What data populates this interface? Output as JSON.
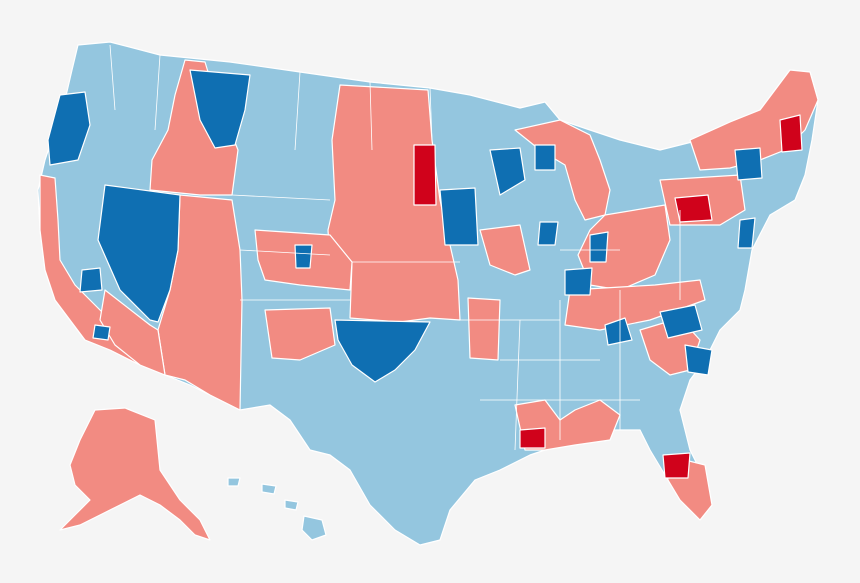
{
  "map": {
    "background": "#f5f5f5",
    "colors": {
      "lean_d": "#94c6df",
      "strong_d": "#0f6fb2",
      "lean_r": "#f28b82",
      "strong_r": "#d0021b",
      "border": "#ffffff"
    }
  }
}
